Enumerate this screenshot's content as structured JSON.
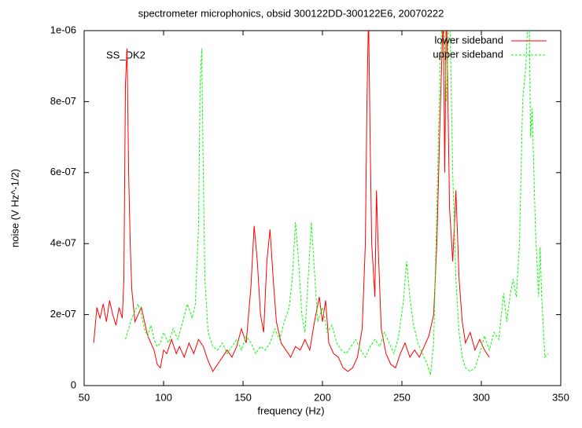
{
  "chart_data": {
    "type": "line",
    "title": "spectrometer microphonics, obsid 300122DD-300122E6, 20070222",
    "annotation": "SS_DK2",
    "xlabel": "frequency (Hz)",
    "ylabel": "noise (V Hz^-1/2)",
    "xlim": [
      50,
      350
    ],
    "xticks": [
      50,
      100,
      150,
      200,
      250,
      300,
      350
    ],
    "ylim": [
      0,
      1e-06
    ],
    "yticks": [
      0,
      {
        "value": 2e-07,
        "label": "2e-07"
      },
      {
        "value": 4e-07,
        "label": "4e-07"
      },
      {
        "value": 6e-07,
        "label": "6e-07"
      },
      {
        "value": 8e-07,
        "label": "8e-07"
      },
      {
        "value": 1e-06,
        "label": "1e-06"
      }
    ],
    "grid": false,
    "legend": "top-right",
    "series": [
      {
        "name": "lower sideband",
        "color": "#ff0000",
        "x": [
          56,
          58,
          60,
          62,
          64,
          66,
          68,
          70,
          72,
          74,
          75,
          76,
          77,
          78,
          79,
          80,
          82,
          84,
          86,
          88,
          90,
          92,
          94,
          96,
          98,
          100,
          102,
          105,
          108,
          110,
          113,
          116,
          119,
          122,
          125,
          128,
          131,
          134,
          137,
          140,
          143,
          146,
          149,
          152,
          155,
          157,
          159,
          161,
          163,
          165,
          167,
          169,
          171,
          174,
          177,
          180,
          183,
          186,
          189,
          192,
          195,
          198,
          200,
          202,
          204,
          207,
          210,
          213,
          216,
          219,
          222,
          225,
          227,
          228,
          229,
          230,
          231,
          233,
          234,
          235,
          237,
          240,
          243,
          246,
          249,
          252,
          255,
          258,
          261,
          264,
          267,
          270,
          272,
          274,
          276,
          277,
          278,
          279,
          280,
          282,
          284,
          286,
          288,
          290,
          293,
          296,
          299,
          302,
          305
        ],
        "values": [
          1.2e-07,
          2.2e-07,
          1.9e-07,
          2.3e-07,
          1.8e-07,
          2.4e-07,
          2e-07,
          1.7e-07,
          2.2e-07,
          1.9e-07,
          3e-07,
          8.5e-07,
          9.5e-07,
          6e-07,
          4e-07,
          2.7e-07,
          1.8e-07,
          2e-07,
          2.2e-07,
          1.8e-07,
          1.4e-07,
          1.2e-07,
          1e-07,
          6e-08,
          5e-08,
          1e-07,
          9e-08,
          1.3e-07,
          9e-08,
          1.1e-07,
          8e-08,
          1.2e-07,
          9e-08,
          1.3e-07,
          1.1e-07,
          7e-08,
          4e-08,
          6e-08,
          8e-08,
          1e-07,
          8e-08,
          1.1e-07,
          1.6e-07,
          1.2e-07,
          2.8e-07,
          4.5e-07,
          3.5e-07,
          2e-07,
          1.5e-07,
          3.5e-07,
          4.4e-07,
          3e-07,
          1.8e-07,
          1.2e-07,
          1e-07,
          8e-08,
          1.1e-07,
          1e-07,
          1.3e-07,
          1e-07,
          1.8e-07,
          2.5e-07,
          1.8e-07,
          2.4e-07,
          1.2e-07,
          9e-08,
          8e-08,
          5e-08,
          4e-08,
          5e-08,
          8e-08,
          1.6e-07,
          4e-07,
          8e-07,
          1.05e-06,
          7e-07,
          4e-07,
          2.5e-07,
          5.5e-07,
          4e-07,
          1.6e-07,
          9e-08,
          6e-08,
          5e-08,
          9e-08,
          1.2e-07,
          8e-08,
          1e-07,
          8e-08,
          1.1e-07,
          1.4e-07,
          2e-07,
          4e-07,
          7.5e-07,
          1.05e-06,
          6e-07,
          1.1e-06,
          8e-07,
          5e-07,
          3.5e-07,
          5.5e-07,
          3e-07,
          1.8e-07,
          1.2e-07,
          1.5e-07,
          1e-07,
          1.3e-07,
          1e-07,
          8e-08
        ]
      },
      {
        "name": "upper sideband",
        "color": "#00ff00",
        "x": [
          76,
          78,
          80,
          82,
          84,
          86,
          88,
          90,
          92,
          94,
          96,
          98,
          100,
          103,
          106,
          109,
          112,
          115,
          118,
          120,
          122,
          123,
          124,
          125,
          126,
          128,
          131,
          134,
          137,
          140,
          143,
          146,
          149,
          152,
          155,
          158,
          161,
          164,
          167,
          170,
          173,
          176,
          179,
          181,
          183,
          185,
          187,
          189,
          191,
          193,
          195,
          197,
          200,
          203,
          206,
          209,
          212,
          215,
          218,
          221,
          224,
          227,
          230,
          233,
          236,
          239,
          242,
          245,
          248,
          251,
          253,
          255,
          257,
          260,
          263,
          266,
          268,
          270,
          272,
          274,
          276,
          278,
          280,
          282,
          284,
          286,
          288,
          290,
          293,
          296,
          299,
          302,
          305,
          308,
          311,
          314,
          316,
          318,
          320,
          322,
          324,
          326,
          328,
          330,
          331,
          332,
          334,
          336,
          337,
          338,
          340,
          342
        ],
        "values": [
          1.3e-07,
          1.6e-07,
          1.9e-07,
          2.1e-07,
          2.3e-07,
          2e-07,
          1.6e-07,
          1.4e-07,
          1.7e-07,
          1.3e-07,
          1.1e-07,
          1.2e-07,
          1.5e-07,
          1.2e-07,
          1.6e-07,
          1.3e-07,
          1.8e-07,
          2.3e-07,
          1.9e-07,
          2.3e-07,
          4.5e-07,
          8.5e-07,
          9.5e-07,
          6e-07,
          3e-07,
          1.5e-07,
          1.1e-07,
          1e-07,
          1.2e-07,
          9e-08,
          1.1e-07,
          1.3e-07,
          1e-07,
          1.4e-07,
          1.2e-07,
          9e-08,
          1.1e-07,
          1e-07,
          1.2e-07,
          1.6e-07,
          1.3e-07,
          1.8e-07,
          2.2e-07,
          3e-07,
          4.6e-07,
          3.5e-07,
          2e-07,
          1.5e-07,
          3e-07,
          4.6e-07,
          3.2e-07,
          1.8e-07,
          2.2e-07,
          1.5e-07,
          1.7e-07,
          1.2e-07,
          1e-07,
          9e-08,
          1.1e-07,
          1.3e-07,
          1e-07,
          8e-08,
          1.1e-07,
          1.3e-07,
          1.1e-07,
          1.5e-07,
          1.2e-07,
          9e-08,
          1.4e-07,
          2.4e-07,
          3.5e-07,
          2.5e-07,
          1.8e-07,
          1.2e-07,
          9e-08,
          6e-08,
          3e-08,
          1.2e-07,
          5e-07,
          9e-07,
          1.1e-06,
          8e-07,
          1.1e-06,
          6e-07,
          3e-07,
          1.5e-07,
          8e-08,
          5e-08,
          4e-08,
          5e-08,
          9e-08,
          1.4e-07,
          1e-07,
          1.5e-07,
          1.3e-07,
          2.6e-07,
          1.8e-07,
          2.5e-07,
          3e-07,
          2.5e-07,
          4e-07,
          8e-07,
          9e-07,
          1.1e-06,
          7e-07,
          7.8e-07,
          4.5e-07,
          2.5e-07,
          3.9e-07,
          2.5e-07,
          8e-08,
          9e-08
        ]
      }
    ]
  }
}
